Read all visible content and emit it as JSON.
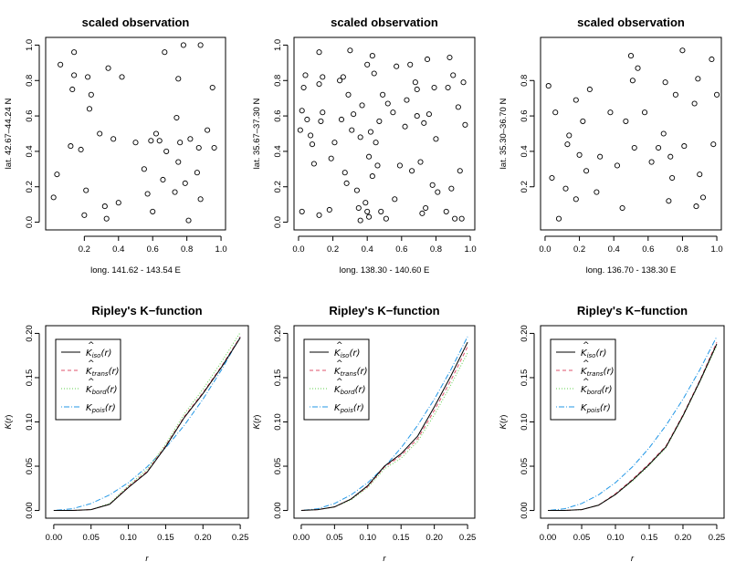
{
  "chart_data": [
    {
      "type": "scatter",
      "title": "scaled observation",
      "xlabel": "long. 141.62 - 143.54 E",
      "ylabel": "lat. 42.67–44.24 N",
      "xlim": [
        0,
        1
      ],
      "ylim": [
        0,
        1
      ],
      "xticks": [
        "0.2",
        "0.4",
        "0.6",
        "0.8",
        "1.0"
      ],
      "yticks": [
        "0.0",
        "0.2",
        "0.4",
        "0.6",
        "0.8",
        "1.0"
      ],
      "points": [
        [
          0.02,
          0.14
        ],
        [
          0.04,
          0.27
        ],
        [
          0.06,
          0.89
        ],
        [
          0.12,
          0.43
        ],
        [
          0.13,
          0.75
        ],
        [
          0.14,
          0.83
        ],
        [
          0.14,
          0.96
        ],
        [
          0.18,
          0.41
        ],
        [
          0.2,
          0.04
        ],
        [
          0.21,
          0.18
        ],
        [
          0.22,
          0.82
        ],
        [
          0.23,
          0.64
        ],
        [
          0.24,
          0.72
        ],
        [
          0.29,
          0.5
        ],
        [
          0.32,
          0.09
        ],
        [
          0.33,
          0.02
        ],
        [
          0.34,
          0.87
        ],
        [
          0.37,
          0.47
        ],
        [
          0.4,
          0.11
        ],
        [
          0.42,
          0.82
        ],
        [
          0.5,
          0.45
        ],
        [
          0.55,
          0.3
        ],
        [
          0.57,
          0.16
        ],
        [
          0.59,
          0.46
        ],
        [
          0.6,
          0.06
        ],
        [
          0.62,
          0.5
        ],
        [
          0.64,
          0.46
        ],
        [
          0.66,
          0.24
        ],
        [
          0.67,
          0.96
        ],
        [
          0.68,
          0.4
        ],
        [
          0.73,
          0.17
        ],
        [
          0.74,
          0.59
        ],
        [
          0.75,
          0.34
        ],
        [
          0.75,
          0.81
        ],
        [
          0.76,
          0.45
        ],
        [
          0.78,
          1.0
        ],
        [
          0.79,
          0.22
        ],
        [
          0.81,
          0.01
        ],
        [
          0.82,
          0.47
        ],
        [
          0.86,
          0.28
        ],
        [
          0.87,
          0.42
        ],
        [
          0.88,
          1.0
        ],
        [
          0.88,
          0.13
        ],
        [
          0.92,
          0.52
        ],
        [
          0.95,
          0.76
        ],
        [
          0.96,
          0.42
        ]
      ]
    },
    {
      "type": "scatter",
      "title": "scaled observation",
      "xlabel": "long. 138.30 - 140.60 E",
      "ylabel": "lat. 35.67–37.30 N",
      "xlim": [
        0,
        1
      ],
      "ylim": [
        0,
        1
      ],
      "xticks": [
        "0.0",
        "0.2",
        "0.4",
        "0.6",
        "0.8",
        "1.0"
      ],
      "yticks": [
        "0.0",
        "0.2",
        "0.4",
        "0.6",
        "0.8",
        "1.0"
      ],
      "points": [
        [
          0.01,
          0.52
        ],
        [
          0.02,
          0.63
        ],
        [
          0.02,
          0.06
        ],
        [
          0.03,
          0.76
        ],
        [
          0.04,
          0.83
        ],
        [
          0.05,
          0.58
        ],
        [
          0.07,
          0.49
        ],
        [
          0.08,
          0.44
        ],
        [
          0.09,
          0.33
        ],
        [
          0.12,
          0.96
        ],
        [
          0.12,
          0.04
        ],
        [
          0.12,
          0.78
        ],
        [
          0.13,
          0.57
        ],
        [
          0.14,
          0.82
        ],
        [
          0.14,
          0.62
        ],
        [
          0.18,
          0.07
        ],
        [
          0.19,
          0.36
        ],
        [
          0.21,
          0.45
        ],
        [
          0.24,
          0.8
        ],
        [
          0.25,
          0.58
        ],
        [
          0.26,
          0.82
        ],
        [
          0.27,
          0.28
        ],
        [
          0.28,
          0.22
        ],
        [
          0.29,
          0.72
        ],
        [
          0.3,
          0.97
        ],
        [
          0.31,
          0.52
        ],
        [
          0.32,
          0.61
        ],
        [
          0.34,
          0.18
        ],
        [
          0.35,
          0.08
        ],
        [
          0.36,
          0.01
        ],
        [
          0.36,
          0.48
        ],
        [
          0.37,
          0.66
        ],
        [
          0.39,
          0.11
        ],
        [
          0.4,
          0.89
        ],
        [
          0.4,
          0.06
        ],
        [
          0.41,
          0.03
        ],
        [
          0.41,
          0.37
        ],
        [
          0.42,
          0.51
        ],
        [
          0.43,
          0.94
        ],
        [
          0.43,
          0.26
        ],
        [
          0.44,
          0.84
        ],
        [
          0.45,
          0.45
        ],
        [
          0.46,
          0.32
        ],
        [
          0.47,
          0.57
        ],
        [
          0.48,
          0.06
        ],
        [
          0.49,
          0.72
        ],
        [
          0.51,
          0.02
        ],
        [
          0.52,
          0.67
        ],
        [
          0.55,
          0.62
        ],
        [
          0.56,
          0.13
        ],
        [
          0.57,
          0.88
        ],
        [
          0.59,
          0.32
        ],
        [
          0.62,
          0.54
        ],
        [
          0.63,
          0.69
        ],
        [
          0.65,
          0.89
        ],
        [
          0.66,
          0.29
        ],
        [
          0.68,
          0.79
        ],
        [
          0.69,
          0.6
        ],
        [
          0.69,
          0.75
        ],
        [
          0.71,
          0.34
        ],
        [
          0.72,
          0.05
        ],
        [
          0.73,
          0.56
        ],
        [
          0.74,
          0.08
        ],
        [
          0.75,
          0.92
        ],
        [
          0.76,
          0.61
        ],
        [
          0.78,
          0.21
        ],
        [
          0.79,
          0.76
        ],
        [
          0.8,
          0.47
        ],
        [
          0.81,
          0.17
        ],
        [
          0.86,
          0.06
        ],
        [
          0.87,
          0.76
        ],
        [
          0.88,
          0.93
        ],
        [
          0.89,
          0.19
        ],
        [
          0.9,
          0.83
        ],
        [
          0.91,
          0.02
        ],
        [
          0.93,
          0.65
        ],
        [
          0.94,
          0.29
        ],
        [
          0.95,
          0.02
        ],
        [
          0.96,
          0.79
        ],
        [
          0.97,
          0.55
        ]
      ]
    },
    {
      "type": "scatter",
      "title": "scaled observation",
      "xlabel": "long. 136.70 - 138.30 E",
      "ylabel": "lat. 35.30–36.70 N",
      "xlim": [
        0,
        1
      ],
      "ylim": [
        0,
        1
      ],
      "xticks": [
        "0.0",
        "0.2",
        "0.4",
        "0.6",
        "0.8",
        "1.0"
      ],
      "yticks": [
        "0.2",
        "0.4",
        "0.6",
        "0.8"
      ],
      "points": [
        [
          0.02,
          0.77
        ],
        [
          0.04,
          0.25
        ],
        [
          0.06,
          0.62
        ],
        [
          0.08,
          0.02
        ],
        [
          0.12,
          0.19
        ],
        [
          0.13,
          0.44
        ],
        [
          0.14,
          0.49
        ],
        [
          0.18,
          0.69
        ],
        [
          0.18,
          0.13
        ],
        [
          0.2,
          0.38
        ],
        [
          0.22,
          0.57
        ],
        [
          0.24,
          0.29
        ],
        [
          0.26,
          0.75
        ],
        [
          0.3,
          0.17
        ],
        [
          0.32,
          0.37
        ],
        [
          0.38,
          0.62
        ],
        [
          0.42,
          0.32
        ],
        [
          0.45,
          0.08
        ],
        [
          0.47,
          0.57
        ],
        [
          0.5,
          0.94
        ],
        [
          0.51,
          0.8
        ],
        [
          0.52,
          0.42
        ],
        [
          0.54,
          0.87
        ],
        [
          0.58,
          0.62
        ],
        [
          0.62,
          0.34
        ],
        [
          0.66,
          0.42
        ],
        [
          0.69,
          0.5
        ],
        [
          0.7,
          0.79
        ],
        [
          0.72,
          0.12
        ],
        [
          0.73,
          0.37
        ],
        [
          0.74,
          0.25
        ],
        [
          0.76,
          0.72
        ],
        [
          0.8,
          0.97
        ],
        [
          0.81,
          0.43
        ],
        [
          0.87,
          0.67
        ],
        [
          0.88,
          0.09
        ],
        [
          0.89,
          0.81
        ],
        [
          0.9,
          0.27
        ],
        [
          0.92,
          0.14
        ],
        [
          0.97,
          0.92
        ],
        [
          0.98,
          0.44
        ],
        [
          1.0,
          0.72
        ]
      ]
    },
    {
      "type": "line",
      "title": "Ripley's K−function",
      "xlabel": "r",
      "ylabel": "K(r)",
      "xlim": [
        0,
        0.25
      ],
      "ylim": [
        0,
        0.2
      ],
      "xticks": [
        "0.00",
        "0.05",
        "0.10",
        "0.15",
        "0.20",
        "0.25"
      ],
      "yticks": [
        "0.00",
        "0.05",
        "0.10",
        "0.15",
        "0.20"
      ],
      "legend_position": "top-left",
      "x": [
        0,
        0.025,
        0.05,
        0.075,
        0.1,
        0.125,
        0.15,
        0.175,
        0.2,
        0.225,
        0.25
      ],
      "series": [
        {
          "name": "iso",
          "color": "#000000",
          "dash": "solid",
          "values": [
            0,
            0,
            0.001,
            0.007,
            0.026,
            0.043,
            0.072,
            0.105,
            0.132,
            0.162,
            0.195
          ]
        },
        {
          "name": "trans",
          "color": "#df536b",
          "dash": "dashed",
          "values": [
            0,
            0,
            0.001,
            0.007,
            0.027,
            0.044,
            0.073,
            0.106,
            0.133,
            0.163,
            0.196
          ]
        },
        {
          "name": "bord",
          "color": "#61d04f",
          "dash": "dotted",
          "values": [
            0,
            0,
            0.001,
            0.008,
            0.028,
            0.046,
            0.075,
            0.109,
            0.137,
            0.168,
            0.201
          ]
        },
        {
          "name": "pois",
          "color": "#2297e6",
          "dash": "dotdash",
          "values": [
            0,
            0.00196,
            0.00785,
            0.01767,
            0.03142,
            0.04909,
            0.07069,
            0.09621,
            0.12566,
            0.15904,
            0.19635
          ]
        }
      ]
    },
    {
      "type": "line",
      "title": "Ripley's K−function",
      "xlabel": "r",
      "ylabel": "K(r)",
      "xlim": [
        0,
        0.25
      ],
      "ylim": [
        0,
        0.2
      ],
      "xticks": [
        "0.00",
        "0.05",
        "0.10",
        "0.15",
        "0.20",
        "0.25"
      ],
      "yticks": [
        "0.00",
        "0.05",
        "0.10",
        "0.15",
        "0.20"
      ],
      "legend_position": "top-left",
      "x": [
        0,
        0.025,
        0.05,
        0.075,
        0.1,
        0.125,
        0.15,
        0.175,
        0.2,
        0.225,
        0.25
      ],
      "series": [
        {
          "name": "iso",
          "color": "#000000",
          "dash": "solid",
          "values": [
            0,
            0.001,
            0.004,
            0.013,
            0.028,
            0.05,
            0.064,
            0.084,
            0.117,
            0.152,
            0.19
          ]
        },
        {
          "name": "trans",
          "color": "#df536b",
          "dash": "dashed",
          "values": [
            0,
            0.001,
            0.004,
            0.013,
            0.027,
            0.049,
            0.062,
            0.081,
            0.113,
            0.147,
            0.185
          ]
        },
        {
          "name": "bord",
          "color": "#61d04f",
          "dash": "dotted",
          "values": [
            0,
            0.001,
            0.004,
            0.012,
            0.026,
            0.047,
            0.059,
            0.078,
            0.108,
            0.142,
            0.178
          ]
        },
        {
          "name": "pois",
          "color": "#2297e6",
          "dash": "dotdash",
          "values": [
            0,
            0.00196,
            0.00785,
            0.01767,
            0.03142,
            0.04909,
            0.07069,
            0.09621,
            0.12566,
            0.15904,
            0.19635
          ]
        }
      ]
    },
    {
      "type": "line",
      "title": "Ripley's K−function",
      "xlabel": "r",
      "ylabel": "K(r)",
      "xlim": [
        0,
        0.25
      ],
      "ylim": [
        0,
        0.2
      ],
      "xticks": [
        "0.00",
        "0.05",
        "0.10",
        "0.15",
        "0.20",
        "0.25"
      ],
      "yticks": [
        "0.00",
        "0.05",
        "0.10",
        "0.15",
        "0.20"
      ],
      "legend_position": "top-left",
      "x": [
        0,
        0.025,
        0.05,
        0.075,
        0.1,
        0.125,
        0.15,
        0.175,
        0.2,
        0.225,
        0.25
      ],
      "series": [
        {
          "name": "iso",
          "color": "#000000",
          "dash": "solid",
          "values": [
            0,
            0,
            0.001,
            0.006,
            0.018,
            0.034,
            0.052,
            0.072,
            0.107,
            0.146,
            0.188
          ]
        },
        {
          "name": "trans",
          "color": "#df536b",
          "dash": "dashed",
          "values": [
            0,
            0,
            0.001,
            0.006,
            0.019,
            0.035,
            0.053,
            0.073,
            0.108,
            0.147,
            0.19
          ]
        },
        {
          "name": "bord",
          "color": "#61d04f",
          "dash": "dotted",
          "values": [
            0,
            0,
            0.001,
            0.006,
            0.018,
            0.033,
            0.051,
            0.071,
            0.106,
            0.145,
            0.186
          ]
        },
        {
          "name": "pois",
          "color": "#2297e6",
          "dash": "dotdash",
          "values": [
            0,
            0.00196,
            0.00785,
            0.01767,
            0.03142,
            0.04909,
            0.07069,
            0.09621,
            0.12566,
            0.15904,
            0.19635
          ]
        }
      ]
    }
  ],
  "legend": {
    "entries": [
      {
        "symbol": "K",
        "hat": true,
        "sub": "iso",
        "arg": "(r)"
      },
      {
        "symbol": "K",
        "hat": true,
        "sub": "trans",
        "arg": "(r)"
      },
      {
        "symbol": "K",
        "hat": true,
        "sub": "bord",
        "arg": "(r)"
      },
      {
        "symbol": "K",
        "hat": false,
        "sub": "pois",
        "arg": "(r)"
      }
    ]
  }
}
